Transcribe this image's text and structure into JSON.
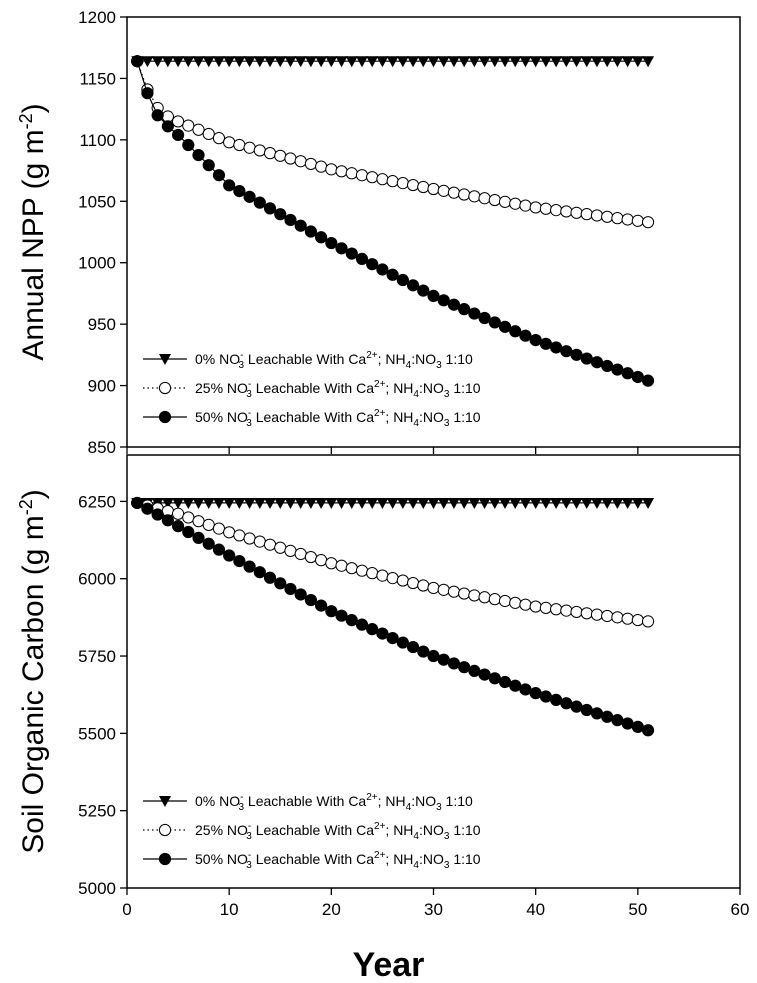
{
  "chart_data": [
    {
      "type": "line",
      "ylabel": "Annual NPP (g m-2)",
      "ylabel_parts": {
        "main": "Annual NPP (g m",
        "sup": "-2",
        "end": ")"
      },
      "xlim": [
        0,
        60
      ],
      "ylim": [
        850,
        1200
      ],
      "yticks": [
        850,
        900,
        950,
        1000,
        1050,
        1100,
        1150,
        1200
      ],
      "xticks": [
        0,
        10,
        20,
        30,
        40,
        50,
        60
      ],
      "show_x_tick_labels": false,
      "legend_position": "bottom-left",
      "series": [
        {
          "name": "0% NO3 Leachable With Ca2+; NH4:NO3 1:10",
          "legend_pct": "0%",
          "marker": "triangle-down",
          "line_style": "solid",
          "x": [
            1,
            51
          ],
          "shape": "constant",
          "y_start": 1164,
          "y_end": 1164
        },
        {
          "name": "25% NO3 Leachable With Ca2+; NH4:NO3 1:10",
          "legend_pct": "25%",
          "marker": "open-circle",
          "line_style": "dotted",
          "x": [
            1,
            51
          ],
          "shape": "exp-decay",
          "y_start": 1164,
          "y_end": 1033,
          "knots": [
            [
              1,
              1164
            ],
            [
              2,
              1141
            ],
            [
              3,
              1126
            ],
            [
              4,
              1119
            ],
            [
              5,
              1115
            ],
            [
              10,
              1098
            ],
            [
              20,
              1076
            ],
            [
              30,
              1060
            ],
            [
              40,
              1045
            ],
            [
              51,
              1033
            ]
          ]
        },
        {
          "name": "50% NO3 Leachable With Ca2+; NH4:NO3 1:10",
          "legend_pct": "50%",
          "marker": "filled-circle",
          "line_style": "solid",
          "x": [
            1,
            51
          ],
          "shape": "exp-decay",
          "y_start": 1164,
          "y_end": 904,
          "knots": [
            [
              1,
              1164
            ],
            [
              2,
              1138
            ],
            [
              3,
              1120
            ],
            [
              4,
              1111
            ],
            [
              5,
              1104
            ],
            [
              10,
              1063
            ],
            [
              20,
              1016
            ],
            [
              30,
              973
            ],
            [
              40,
              937
            ],
            [
              51,
              904
            ]
          ]
        }
      ]
    },
    {
      "type": "line",
      "xlabel": "Year",
      "ylabel": "Soil Organic Carbon (g m-2)",
      "ylabel_parts": {
        "main": "Soil Organic Carbon (g m",
        "sup": "-2",
        "end": ")"
      },
      "xlim": [
        0,
        60
      ],
      "ylim": [
        5000,
        6400
      ],
      "yticks": [
        5000,
        5250,
        5500,
        5750,
        6000,
        6250
      ],
      "xticks": [
        0,
        10,
        20,
        30,
        40,
        50,
        60
      ],
      "show_x_tick_labels": true,
      "legend_position": "bottom-left",
      "series": [
        {
          "name": "0% NO3 Leachable With Ca2+; NH4:NO3 1:10",
          "legend_pct": "0%",
          "marker": "triangle-down",
          "line_style": "solid",
          "x": [
            1,
            51
          ],
          "shape": "constant",
          "y_start": 6245,
          "y_end": 6245
        },
        {
          "name": "25% NO3 Leachable With Ca2+; NH4:NO3 1:10",
          "legend_pct": "25%",
          "marker": "open-circle",
          "line_style": "dotted",
          "x": [
            1,
            51
          ],
          "shape": "decay",
          "knots": [
            [
              1,
              6245
            ],
            [
              5,
              6210
            ],
            [
              10,
              6150
            ],
            [
              20,
              6050
            ],
            [
              30,
              5970
            ],
            [
              40,
              5910
            ],
            [
              51,
              5862
            ]
          ]
        },
        {
          "name": "50% NO3 Leachable With Ca2+; NH4:NO3 1:10",
          "legend_pct": "50%",
          "marker": "filled-circle",
          "line_style": "solid",
          "x": [
            1,
            51
          ],
          "shape": "decay",
          "knots": [
            [
              1,
              6245
            ],
            [
              5,
              6170
            ],
            [
              10,
              6075
            ],
            [
              20,
              5895
            ],
            [
              30,
              5750
            ],
            [
              40,
              5630
            ],
            [
              51,
              5510
            ]
          ]
        }
      ]
    }
  ],
  "legend_text": {
    "no": "NO",
    "no_sub": "3",
    "no_sup": "-",
    "mid": " Leachable With Ca",
    "ca_sup": "2+",
    "semi": "; NH",
    "nh_sub": "4",
    "colon": ":NO",
    "no2_sub": "3",
    "ratio": " 1:10"
  }
}
